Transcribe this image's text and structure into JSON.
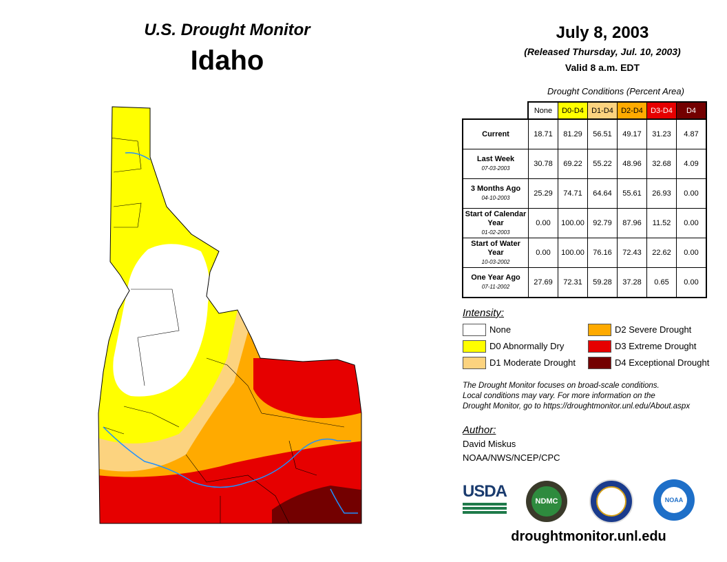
{
  "header": {
    "title": "U.S. Drought Monitor",
    "state": "Idaho",
    "date": "July 8, 2003",
    "released": "(Released Thursday, Jul. 10, 2003)",
    "valid": "Valid 8 a.m. EDT"
  },
  "table": {
    "caption": "Drought Conditions (Percent Area)",
    "columns": [
      "None",
      "D0-D4",
      "D1-D4",
      "D2-D4",
      "D3-D4",
      "D4"
    ],
    "rows": [
      {
        "label": "Current",
        "date": "",
        "values": [
          "18.71",
          "81.29",
          "56.51",
          "49.17",
          "31.23",
          "4.87"
        ]
      },
      {
        "label": "Last Week",
        "date": "07-03-2003",
        "values": [
          "30.78",
          "69.22",
          "55.22",
          "48.96",
          "32.68",
          "4.09"
        ]
      },
      {
        "label": "3 Months Ago",
        "date": "04-10-2003",
        "values": [
          "25.29",
          "74.71",
          "64.64",
          "55.61",
          "26.93",
          "0.00"
        ]
      },
      {
        "label": "Start of Calendar Year",
        "date": "01-02-2003",
        "values": [
          "0.00",
          "100.00",
          "92.79",
          "87.96",
          "11.52",
          "0.00"
        ]
      },
      {
        "label": "Start of Water Year",
        "date": "10-03-2002",
        "values": [
          "0.00",
          "100.00",
          "76.16",
          "72.43",
          "22.62",
          "0.00"
        ]
      },
      {
        "label": "One Year Ago",
        "date": "07-11-2002",
        "values": [
          "27.69",
          "72.31",
          "59.28",
          "37.28",
          "0.65",
          "0.00"
        ]
      }
    ]
  },
  "legend": {
    "title": "Intensity:",
    "items": [
      {
        "label": "None",
        "color": "#ffffff"
      },
      {
        "label": "D0 Abnormally Dry",
        "color": "#ffff00"
      },
      {
        "label": "D1 Moderate Drought",
        "color": "#fcd37f"
      },
      {
        "label": "D2 Severe Drought",
        "color": "#ffaa00"
      },
      {
        "label": "D3 Extreme Drought",
        "color": "#e60000"
      },
      {
        "label": "D4 Exceptional Drought",
        "color": "#730000"
      }
    ]
  },
  "note": [
    "The Drought Monitor focuses on broad-scale conditions.",
    "Local conditions may vary. For more information on the",
    "Drought Monitor, go to https://droughtmonitor.unl.edu/About.aspx"
  ],
  "author": {
    "title": "Author:",
    "name": "David Miskus",
    "org": "NOAA/NWS/NCEP/CPC"
  },
  "logos": {
    "usda": "USDA",
    "ndmc": "NDMC",
    "noaa": "NOAA"
  },
  "footer": {
    "url": "droughtmonitor.unl.edu"
  }
}
